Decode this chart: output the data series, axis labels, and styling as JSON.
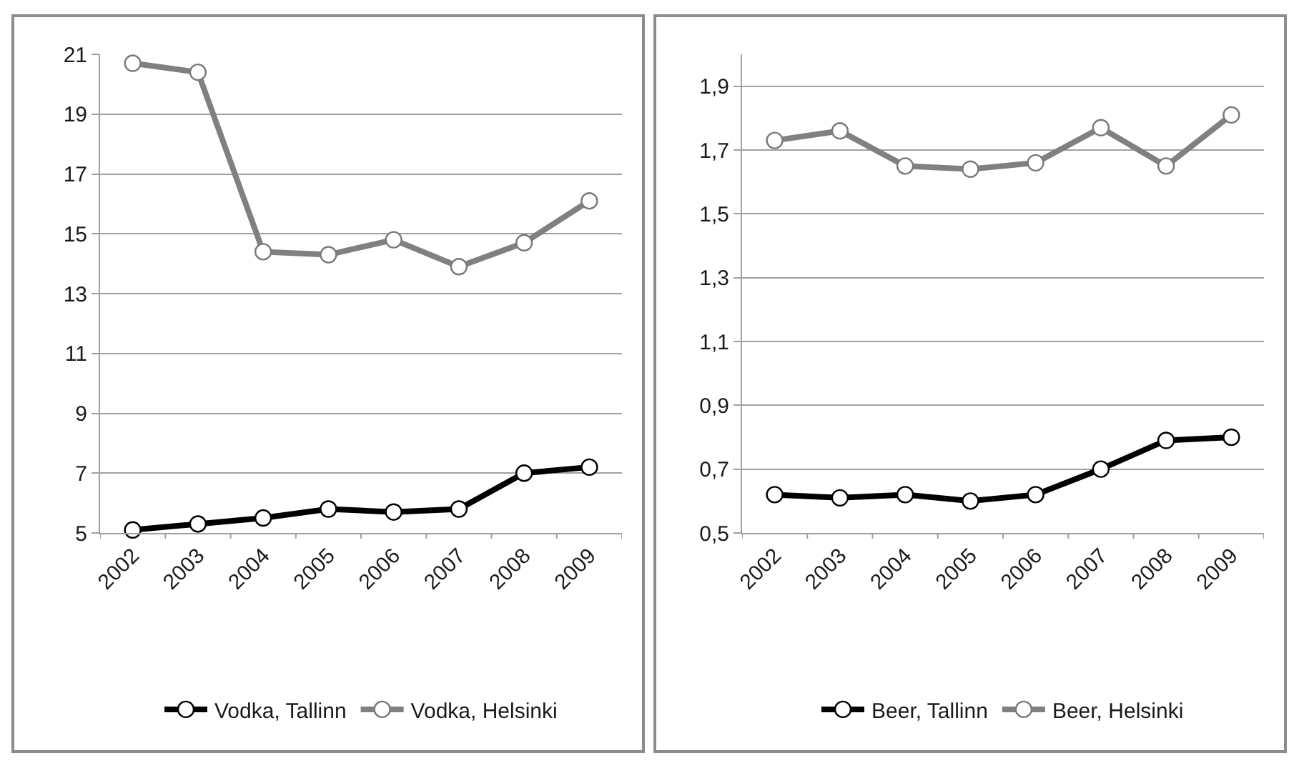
{
  "chart_data": [
    {
      "type": "line",
      "categories": [
        "2002",
        "2003",
        "2004",
        "2005",
        "2006",
        "2007",
        "2008",
        "2009"
      ],
      "series": [
        {
          "name": "Vodka, Tallinn",
          "color": "#000000",
          "values": [
            5.1,
            5.3,
            5.5,
            5.8,
            5.7,
            5.8,
            7.0,
            7.2
          ]
        },
        {
          "name": "Vodka, Helsinki",
          "color": "#808080",
          "values": [
            20.7,
            20.4,
            14.4,
            14.3,
            14.8,
            13.9,
            14.7,
            16.1
          ]
        }
      ],
      "ylim": [
        5,
        21
      ],
      "yticks": [
        5,
        7,
        9,
        11,
        13,
        15,
        17,
        19,
        21
      ],
      "grid": "y",
      "legend": "bottom",
      "marker": "circle",
      "line_style": "solid"
    },
    {
      "type": "line",
      "categories": [
        "2002",
        "2003",
        "2004",
        "2005",
        "2006",
        "2007",
        "2008",
        "2009"
      ],
      "series": [
        {
          "name": "Beer, Tallinn",
          "color": "#000000",
          "values": [
            0.62,
            0.61,
            0.62,
            0.6,
            0.62,
            0.7,
            0.79,
            0.8
          ]
        },
        {
          "name": "Beer, Helsinki",
          "color": "#808080",
          "values": [
            1.73,
            1.76,
            1.65,
            1.64,
            1.66,
            1.77,
            1.65,
            1.81
          ]
        }
      ],
      "ylim": [
        0.5,
        2.0
      ],
      "yticks": [
        {
          "value": 0.5,
          "label": "0,5"
        },
        {
          "value": 0.7,
          "label": "0,7"
        },
        {
          "value": 0.9,
          "label": "0,9"
        },
        {
          "value": 1.1,
          "label": "1,1"
        },
        {
          "value": 1.3,
          "label": "1,3"
        },
        {
          "value": 1.5,
          "label": "1,5"
        },
        {
          "value": 1.7,
          "label": "1,7"
        },
        {
          "value": 1.9,
          "label": "1,9"
        }
      ],
      "grid": "y",
      "legend": "bottom",
      "marker": "circle",
      "line_style": "solid"
    }
  ]
}
